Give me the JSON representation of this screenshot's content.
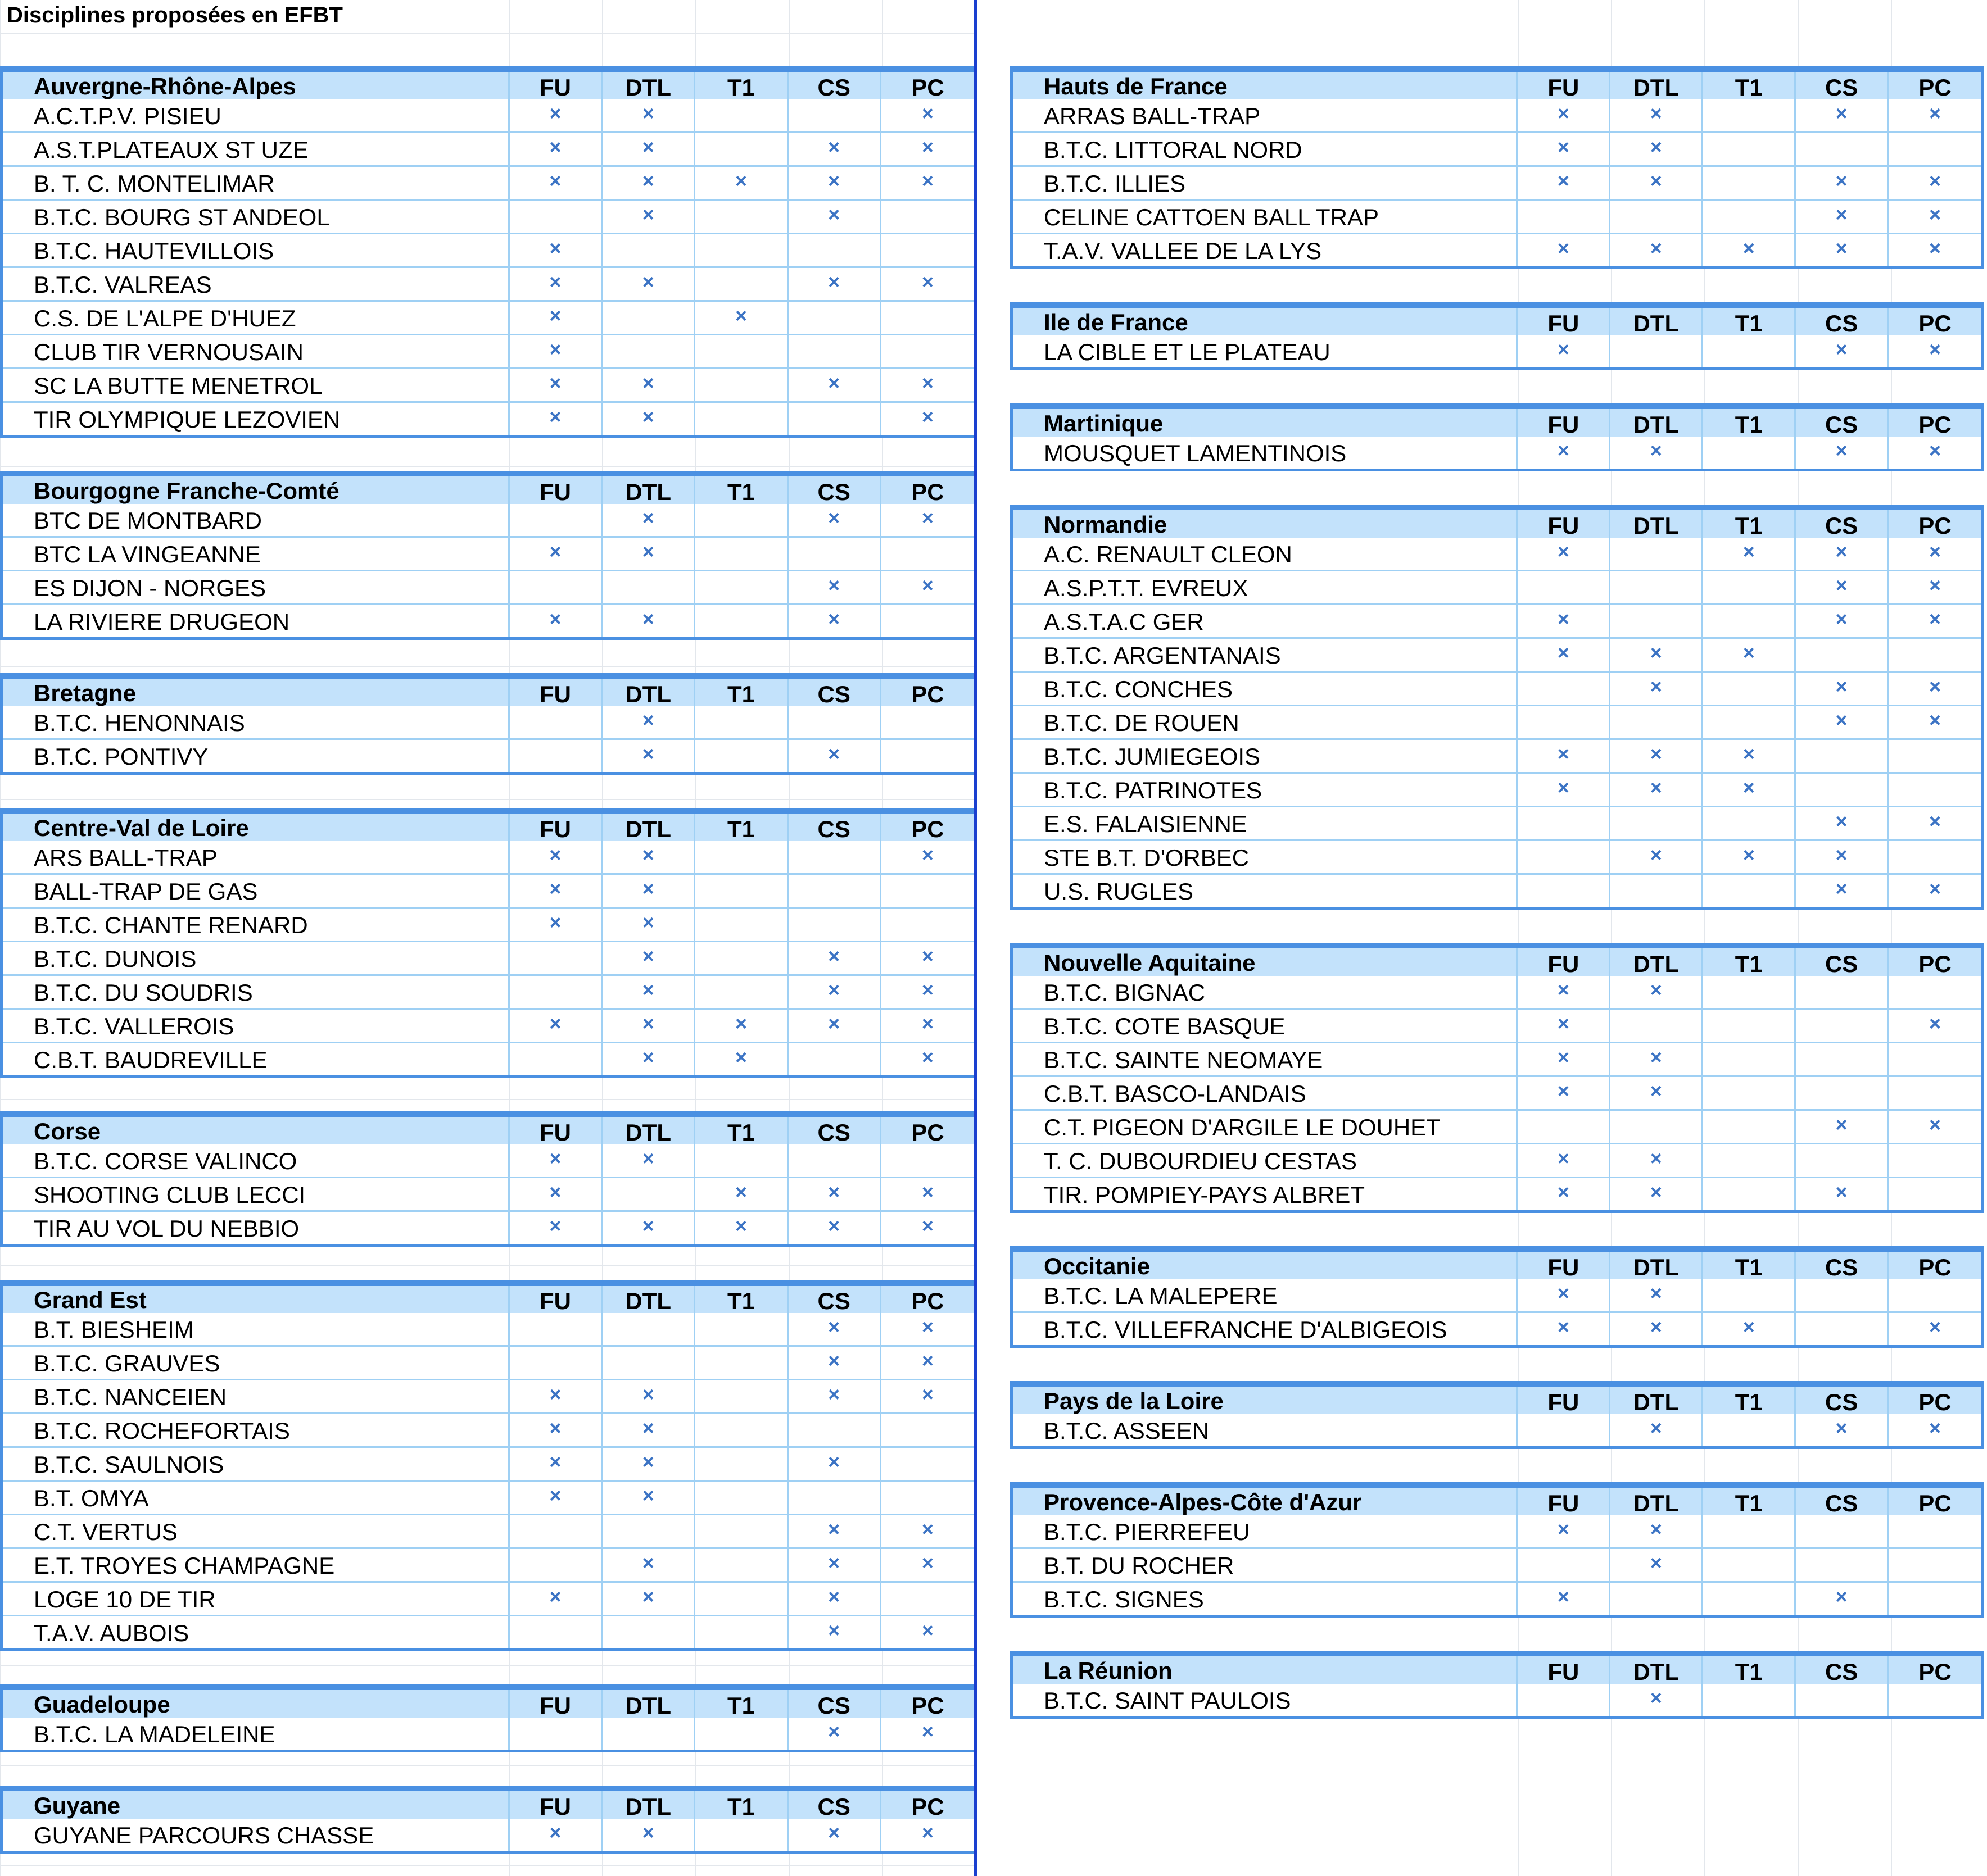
{
  "sheet_title": "Disciplines proposées en EFBT",
  "mark_symbol": "×",
  "colors": {
    "header_fill": "#c3e2fb",
    "border_blue": "#4a90e2",
    "mark_blue": "#3b73c4",
    "divider": "#1a3fcf"
  },
  "left_regions": [
    {
      "name": "Auvergne-Rhône-Alpes",
      "cols": [
        "FU",
        "DTL",
        "T1",
        "CS",
        "PC"
      ],
      "clubs": [
        {
          "name": "A.C.T.P.V. PISIEU",
          "marks": [
            1,
            1,
            0,
            0,
            1
          ]
        },
        {
          "name": "A.S.T.PLATEAUX ST UZE",
          "marks": [
            1,
            1,
            0,
            1,
            1
          ]
        },
        {
          "name": "B. T. C. MONTELIMAR",
          "marks": [
            1,
            1,
            1,
            1,
            1
          ]
        },
        {
          "name": "B.T.C. BOURG ST ANDEOL",
          "marks": [
            0,
            1,
            0,
            1,
            0
          ]
        },
        {
          "name": "B.T.C. HAUTEVILLOIS",
          "marks": [
            1,
            0,
            0,
            0,
            0
          ]
        },
        {
          "name": "B.T.C. VALREAS",
          "marks": [
            1,
            1,
            0,
            1,
            1
          ]
        },
        {
          "name": "C.S. DE L'ALPE D'HUEZ",
          "marks": [
            1,
            0,
            1,
            0,
            0
          ]
        },
        {
          "name": "CLUB TIR VERNOUSAIN",
          "marks": [
            1,
            0,
            0,
            0,
            0
          ]
        },
        {
          "name": "SC LA BUTTE MENETROL",
          "marks": [
            1,
            1,
            0,
            1,
            1
          ]
        },
        {
          "name": "TIR OLYMPIQUE LEZOVIEN",
          "marks": [
            1,
            1,
            0,
            0,
            1
          ]
        }
      ]
    },
    {
      "name": "Bourgogne Franche-Comté",
      "cols": [
        "FU",
        "DTL",
        "T1",
        "CS",
        "PC"
      ],
      "clubs": [
        {
          "name": "BTC DE MONTBARD",
          "marks": [
            0,
            1,
            0,
            1,
            1
          ]
        },
        {
          "name": "BTC LA VINGEANNE",
          "marks": [
            1,
            1,
            0,
            0,
            0
          ]
        },
        {
          "name": "ES DIJON - NORGES",
          "marks": [
            0,
            0,
            0,
            1,
            1
          ]
        },
        {
          "name": "LA RIVIERE DRUGEON",
          "marks": [
            1,
            1,
            0,
            1,
            0
          ]
        }
      ]
    },
    {
      "name": "Bretagne",
      "cols": [
        "FU",
        "DTL",
        "T1",
        "CS",
        "PC"
      ],
      "clubs": [
        {
          "name": "B.T.C. HENONNAIS",
          "marks": [
            0,
            1,
            0,
            0,
            0
          ]
        },
        {
          "name": "B.T.C. PONTIVY",
          "marks": [
            0,
            1,
            0,
            1,
            0
          ]
        }
      ]
    },
    {
      "name": "Centre-Val de Loire",
      "cols": [
        "FU",
        "DTL",
        "T1",
        "CS",
        "PC"
      ],
      "clubs": [
        {
          "name": "ARS BALL-TRAP",
          "marks": [
            1,
            1,
            0,
            0,
            1
          ]
        },
        {
          "name": "BALL-TRAP DE GAS",
          "marks": [
            1,
            1,
            0,
            0,
            0
          ]
        },
        {
          "name": "B.T.C. CHANTE RENARD",
          "marks": [
            1,
            1,
            0,
            0,
            0
          ]
        },
        {
          "name": "B.T.C. DUNOIS",
          "marks": [
            0,
            1,
            0,
            1,
            1
          ]
        },
        {
          "name": "B.T.C. DU SOUDRIS",
          "marks": [
            0,
            1,
            0,
            1,
            1
          ]
        },
        {
          "name": "B.T.C. VALLEROIS",
          "marks": [
            1,
            1,
            1,
            1,
            1
          ]
        },
        {
          "name": "C.B.T. BAUDREVILLE",
          "marks": [
            0,
            1,
            1,
            0,
            1
          ]
        }
      ]
    },
    {
      "name": "Corse",
      "cols": [
        "FU",
        "DTL",
        "T1",
        "CS",
        "PC"
      ],
      "clubs": [
        {
          "name": "B.T.C. CORSE VALINCO",
          "marks": [
            1,
            1,
            0,
            0,
            0
          ]
        },
        {
          "name": "SHOOTING CLUB LECCI",
          "marks": [
            1,
            0,
            1,
            1,
            1
          ]
        },
        {
          "name": "TIR AU VOL DU NEBBIO",
          "marks": [
            1,
            1,
            1,
            1,
            1
          ]
        }
      ]
    },
    {
      "name": "Grand Est",
      "cols": [
        "FU",
        "DTL",
        "T1",
        "CS",
        "PC"
      ],
      "clubs": [
        {
          "name": "B.T. BIESHEIM",
          "marks": [
            0,
            0,
            0,
            1,
            1
          ]
        },
        {
          "name": "B.T.C. GRAUVES",
          "marks": [
            0,
            0,
            0,
            1,
            1
          ]
        },
        {
          "name": "B.T.C. NANCEIEN",
          "marks": [
            1,
            1,
            0,
            1,
            1
          ]
        },
        {
          "name": "B.T.C. ROCHEFORTAIS",
          "marks": [
            1,
            1,
            0,
            0,
            0
          ]
        },
        {
          "name": "B.T.C. SAULNOIS",
          "marks": [
            1,
            1,
            0,
            1,
            0
          ]
        },
        {
          "name": "B.T. OMYA",
          "marks": [
            1,
            1,
            0,
            0,
            0
          ]
        },
        {
          "name": "C.T. VERTUS",
          "marks": [
            0,
            0,
            0,
            1,
            1
          ]
        },
        {
          "name": "E.T. TROYES CHAMPAGNE",
          "marks": [
            0,
            1,
            0,
            1,
            1
          ]
        },
        {
          "name": "LOGE 10 DE TIR",
          "marks": [
            1,
            1,
            0,
            1,
            0
          ]
        },
        {
          "name": "T.A.V. AUBOIS",
          "marks": [
            0,
            0,
            0,
            1,
            1
          ]
        }
      ]
    },
    {
      "name": "Guadeloupe",
      "cols": [
        "FU",
        "DTL",
        "T1",
        "CS",
        "PC"
      ],
      "clubs": [
        {
          "name": "B.T.C. LA MADELEINE",
          "marks": [
            0,
            0,
            0,
            1,
            1
          ]
        }
      ]
    },
    {
      "name": "Guyane",
      "cols": [
        "FU",
        "DTL",
        "T1",
        "CS",
        "PC"
      ],
      "clubs": [
        {
          "name": "GUYANE PARCOURS CHASSE",
          "marks": [
            1,
            1,
            0,
            1,
            1
          ]
        }
      ]
    }
  ],
  "right_regions": [
    {
      "name": "Hauts de France",
      "cols": [
        "FU",
        "DTL",
        "T1",
        "CS",
        "PC"
      ],
      "clubs": [
        {
          "name": "ARRAS BALL-TRAP",
          "marks": [
            1,
            1,
            0,
            1,
            1
          ]
        },
        {
          "name": "B.T.C. LITTORAL NORD",
          "marks": [
            1,
            1,
            0,
            0,
            0
          ]
        },
        {
          "name": "B.T.C. ILLIES",
          "marks": [
            1,
            1,
            0,
            1,
            1
          ]
        },
        {
          "name": "CELINE CATTOEN BALL TRAP",
          "marks": [
            0,
            0,
            0,
            1,
            1
          ]
        },
        {
          "name": "T.A.V. VALLEE DE LA LYS",
          "marks": [
            1,
            1,
            1,
            1,
            1
          ]
        }
      ]
    },
    {
      "name": "Ile de France",
      "cols": [
        "FU",
        "DTL",
        "T1",
        "CS",
        "PC"
      ],
      "clubs": [
        {
          "name": "LA CIBLE ET LE PLATEAU",
          "marks": [
            1,
            0,
            0,
            1,
            1
          ]
        }
      ]
    },
    {
      "name": "Martinique",
      "cols": [
        "FU",
        "DTL",
        "T1",
        "CS",
        "PC"
      ],
      "clubs": [
        {
          "name": "MOUSQUET LAMENTINOIS",
          "marks": [
            1,
            1,
            0,
            1,
            1
          ]
        }
      ]
    },
    {
      "name": "Normandie",
      "cols": [
        "FU",
        "DTL",
        "T1",
        "CS",
        "PC"
      ],
      "clubs": [
        {
          "name": "A.C. RENAULT CLEON",
          "marks": [
            1,
            0,
            1,
            1,
            1
          ]
        },
        {
          "name": "A.S.P.T.T. EVREUX",
          "marks": [
            0,
            0,
            0,
            1,
            1
          ]
        },
        {
          "name": "A.S.T.A.C GER",
          "marks": [
            1,
            0,
            0,
            1,
            1
          ]
        },
        {
          "name": "B.T.C. ARGENTANAIS",
          "marks": [
            1,
            1,
            1,
            0,
            0
          ]
        },
        {
          "name": "B.T.C. CONCHES",
          "marks": [
            0,
            1,
            0,
            1,
            1
          ]
        },
        {
          "name": "B.T.C. DE ROUEN",
          "marks": [
            0,
            0,
            0,
            1,
            1
          ]
        },
        {
          "name": "B.T.C. JUMIEGEOIS",
          "marks": [
            1,
            1,
            1,
            0,
            0
          ]
        },
        {
          "name": "B.T.C. PATRINOTES",
          "marks": [
            1,
            1,
            1,
            0,
            0
          ]
        },
        {
          "name": "E.S. FALAISIENNE",
          "marks": [
            0,
            0,
            0,
            1,
            1
          ]
        },
        {
          "name": "STE  B.T. D'ORBEC",
          "marks": [
            0,
            1,
            1,
            1,
            0
          ]
        },
        {
          "name": "U.S. RUGLES",
          "marks": [
            0,
            0,
            0,
            1,
            1
          ]
        }
      ]
    },
    {
      "name": "Nouvelle Aquitaine",
      "cols": [
        "FU",
        "DTL",
        "T1",
        "CS",
        "PC"
      ],
      "clubs": [
        {
          "name": "B.T.C. BIGNAC",
          "marks": [
            1,
            1,
            0,
            0,
            0
          ]
        },
        {
          "name": "B.T.C. COTE BASQUE",
          "marks": [
            1,
            0,
            0,
            0,
            1
          ]
        },
        {
          "name": "B.T.C. SAINTE NEOMAYE",
          "marks": [
            1,
            1,
            0,
            0,
            0
          ]
        },
        {
          "name": "C.B.T. BASCO-LANDAIS",
          "marks": [
            1,
            1,
            0,
            0,
            0
          ]
        },
        {
          "name": "C.T. PIGEON D'ARGILE LE DOUHET",
          "marks": [
            0,
            0,
            0,
            1,
            1
          ]
        },
        {
          "name": "T. C. DUBOURDIEU CESTAS",
          "marks": [
            1,
            1,
            0,
            0,
            0
          ]
        },
        {
          "name": "TIR. POMPIEY-PAYS ALBRET",
          "marks": [
            1,
            1,
            0,
            1,
            0
          ]
        }
      ]
    },
    {
      "name": "Occitanie",
      "cols": [
        "FU",
        "DTL",
        "T1",
        "CS",
        "PC"
      ],
      "clubs": [
        {
          "name": "B.T.C. LA MALEPERE",
          "marks": [
            1,
            1,
            0,
            0,
            0
          ]
        },
        {
          "name": "B.T.C. VILLEFRANCHE D'ALBIGEOIS",
          "marks": [
            1,
            1,
            1,
            0,
            1
          ]
        }
      ]
    },
    {
      "name": "Pays de la Loire",
      "cols": [
        "FU",
        "DTL",
        "T1",
        "CS",
        "PC"
      ],
      "clubs": [
        {
          "name": "B.T.C. ASSEEN",
          "marks": [
            0,
            1,
            0,
            1,
            1
          ]
        }
      ]
    },
    {
      "name": "Provence-Alpes-Côte d'Azur",
      "cols": [
        "FU",
        "DTL",
        "T1",
        "CS",
        "PC"
      ],
      "clubs": [
        {
          "name": "B.T.C. PIERREFEU",
          "marks": [
            1,
            1,
            0,
            0,
            0
          ]
        },
        {
          "name": "B.T. DU ROCHER",
          "marks": [
            0,
            1,
            0,
            0,
            0
          ]
        },
        {
          "name": "B.T.C. SIGNES",
          "marks": [
            1,
            0,
            0,
            1,
            0
          ]
        }
      ]
    },
    {
      "name": "La Réunion",
      "cols": [
        "FU",
        "DTL",
        "T1",
        "CS",
        "PC"
      ],
      "clubs": [
        {
          "name": "B.T.C. SAINT PAULOIS",
          "marks": [
            0,
            1,
            0,
            0,
            0
          ]
        }
      ]
    }
  ]
}
